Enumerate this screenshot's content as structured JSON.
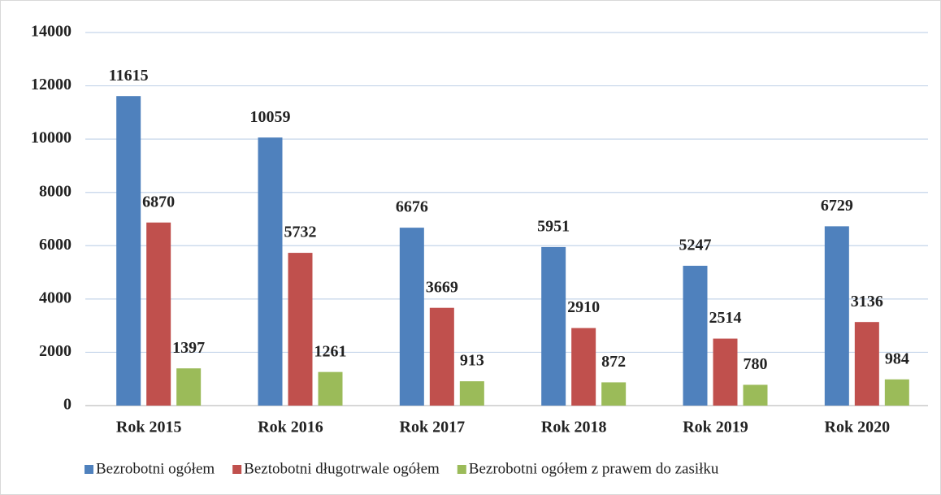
{
  "chart_data": {
    "type": "bar",
    "categories": [
      "Rok 2015",
      "Rok 2016",
      "Rok 2017",
      "Rok 2018",
      "Rok 2019",
      "Rok 2020"
    ],
    "series": [
      {
        "name": "Bezrobotni ogółem",
        "color": "#4f81bd",
        "values": [
          11615,
          10059,
          6676,
          5951,
          5247,
          6729
        ]
      },
      {
        "name": "Beztobotni długotrwale ogółem",
        "color": "#c0504d",
        "values": [
          6870,
          5732,
          3669,
          2910,
          2514,
          3136
        ]
      },
      {
        "name": "Bezrobotni ogółem z prawem do zasiłku",
        "color": "#9bbb59",
        "values": [
          1397,
          1261,
          913,
          872,
          780,
          984
        ]
      }
    ],
    "ylim": [
      0,
      14000
    ],
    "yticks": [
      0,
      2000,
      4000,
      6000,
      8000,
      10000,
      12000,
      14000
    ],
    "grid": true,
    "legend": "bottom"
  }
}
